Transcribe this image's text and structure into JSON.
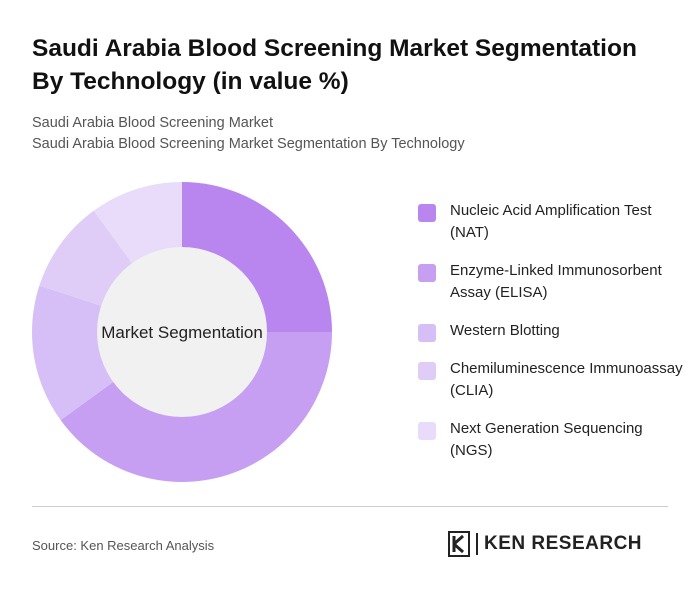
{
  "header": {
    "title": "Saudi Arabia Blood Screening Market Segmentation By Technology (in value %)",
    "subtitle_line1": "Saudi Arabia Blood Screening Market",
    "subtitle_line2": "Saudi Arabia Blood Screening Market Segmentation By Technology"
  },
  "chart_data": {
    "type": "pie",
    "center_label": "Market Segmentation",
    "categories": [
      "Nucleic Acid Amplification Test (NAT)",
      "Enzyme-Linked Immunosorbent Assay (ELISA)",
      "Western Blotting",
      "Chemiluminescence Immunoassay (CLIA)",
      "Next Generation Sequencing (NGS)"
    ],
    "values": [
      25,
      40,
      15,
      10,
      10
    ],
    "colors": [
      "#b886ee",
      "#c69ff2",
      "#d6bff6",
      "#dfcdf8",
      "#e8dcfa"
    ],
    "legend_position": "right"
  },
  "footer": {
    "source": "Source: Ken Research Analysis",
    "logo_text": "KEN RESEARCH"
  }
}
